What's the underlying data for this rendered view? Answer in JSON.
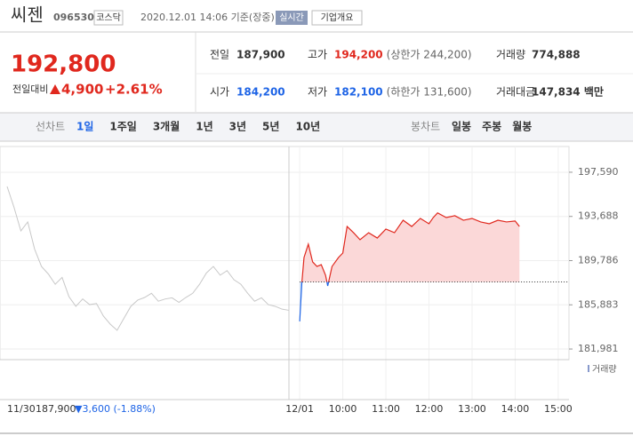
{
  "header": {
    "name": "씨젠",
    "code": "096530",
    "market": "코스닥",
    "time": "2020.12.01 14:06 기준(장중)",
    "realtime": "실시간",
    "overview": "기업개요"
  },
  "price": {
    "now": "192,800",
    "change_label": "전일대비",
    "change": "4,900",
    "rate": "+2.61%"
  },
  "info": [
    [
      {
        "label": "전일",
        "value": "187,900"
      },
      {
        "label": "고가",
        "value": "194,200",
        "note": "(상한가 244,200)"
      },
      {
        "label": "거래량",
        "value": "774,888"
      }
    ],
    [
      {
        "label": "시가",
        "value": "184,200"
      },
      {
        "label": "저가",
        "value": "182,100",
        "note": "(하한가 131,600)"
      },
      {
        "label": "거래대금",
        "value": "147,834 백만"
      }
    ]
  ],
  "tabs": {
    "line_label": "선차트",
    "line": [
      "1일",
      "1주일",
      "3개월",
      "1년",
      "3년",
      "5년",
      "10년"
    ],
    "candle_label": "봉차트",
    "candle": [
      "일봉",
      "주봉",
      "월봉"
    ]
  },
  "footer": {
    "date": "11/30",
    "close": "187,900",
    "change": "▼3,600 (-1.88%)"
  },
  "volume_label": "거래량",
  "chart_data": [
    {
      "type": "line",
      "x_label": "11/30",
      "color": "#c8c8c8",
      "values": [
        196330,
        194500,
        192410,
        193200,
        190800,
        189270,
        188600,
        187700,
        188300,
        186600,
        185750,
        186400,
        185900,
        186000,
        184900,
        184180,
        183630,
        184700,
        185750,
        186300,
        186530,
        186900,
        186200,
        186400,
        186500,
        186100,
        186530,
        186900,
        187700,
        188700,
        189270,
        188500,
        188900,
        188100,
        187700,
        186900,
        186200,
        186500,
        185900,
        185750,
        185500,
        185400
      ]
    },
    {
      "type": "line",
      "reference": 187900,
      "color_up": "#e0281e",
      "color_down": "#1e64e6",
      "x": [
        9.0,
        9.05,
        9.1,
        9.2,
        9.3,
        9.4,
        9.5,
        9.6,
        9.65,
        9.75,
        9.9,
        10.0,
        10.1,
        10.25,
        10.4,
        10.6,
        10.8,
        11.0,
        11.2,
        11.4,
        11.6,
        11.8,
        12.0,
        12.1,
        12.2,
        12.4,
        12.6,
        12.8,
        13.0,
        13.2,
        13.4,
        13.6,
        13.8,
        14.0,
        14.1
      ],
      "values": [
        184420,
        187860,
        190060,
        191240,
        189670,
        189270,
        189430,
        188490,
        187550,
        189270,
        190060,
        190450,
        192800,
        192250,
        191630,
        192250,
        191780,
        192570,
        192250,
        193350,
        192800,
        193510,
        193040,
        193590,
        194000,
        193590,
        193750,
        193350,
        193510,
        193200,
        193040,
        193350,
        193200,
        193280,
        192800
      ],
      "xlim": [
        8.75,
        15.25
      ],
      "ylim": [
        181200,
        199860
      ],
      "xticks": [
        {
          "value": 9,
          "label": "12/01"
        },
        {
          "value": 10,
          "label": "10:00"
        },
        {
          "value": 11,
          "label": "11:00"
        },
        {
          "value": 12,
          "label": "12:00"
        },
        {
          "value": 13,
          "label": "13:00"
        },
        {
          "value": 14,
          "label": "14:00"
        },
        {
          "value": 15,
          "label": "15:00"
        }
      ],
      "yticks": [
        {
          "value": 197590,
          "label": "197,590"
        },
        {
          "value": 193688,
          "label": "193,688"
        },
        {
          "value": 189786,
          "label": "189,786"
        },
        {
          "value": 185883,
          "label": "185,883"
        },
        {
          "value": 181981,
          "label": "181,981"
        }
      ]
    }
  ]
}
